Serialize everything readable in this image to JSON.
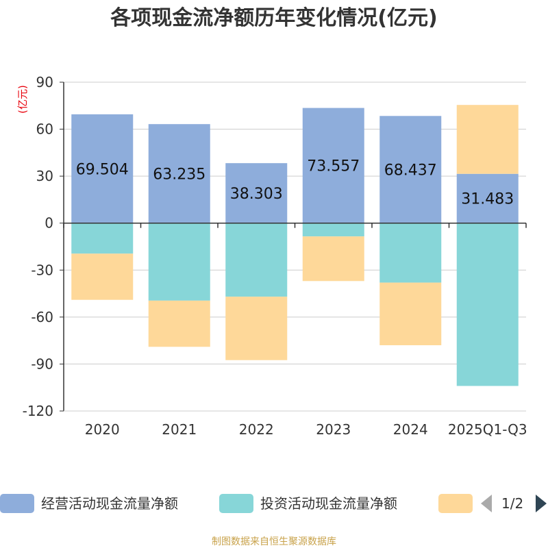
{
  "chart_data": {
    "type": "bar",
    "stacked": true,
    "title": "各项现金流净额历年变化情况(亿元)",
    "ylabel": "(亿元)",
    "xlabel": "",
    "ylim": [
      -120,
      90
    ],
    "yticks": [
      90,
      60,
      30,
      0,
      -30,
      -60,
      -90,
      -120
    ],
    "categories": [
      "2020",
      "2021",
      "2022",
      "2023",
      "2024",
      "2025Q1-Q3"
    ],
    "series": [
      {
        "name": "经营活动现金流量净额",
        "color": "#8eaddb",
        "values": [
          69.504,
          63.235,
          38.303,
          73.557,
          68.437,
          31.483
        ],
        "labels": [
          "69.504",
          "63.235",
          "38.303",
          "73.557",
          "68.437",
          "31.483"
        ]
      },
      {
        "name": "投资活动现金流量净额",
        "color": "#87d6d8",
        "values": [
          -19.5,
          -49.5,
          -47,
          -8.5,
          -38,
          -104
        ]
      },
      {
        "name": "",
        "color": "#fed899",
        "values": [
          -29.5,
          -29.5,
          -40.5,
          -28.5,
          -40,
          44
        ]
      }
    ],
    "legend": {
      "position": "bottom",
      "page": "1/2"
    },
    "grid": true,
    "source": "制图数据来自恒生聚源数据库"
  }
}
